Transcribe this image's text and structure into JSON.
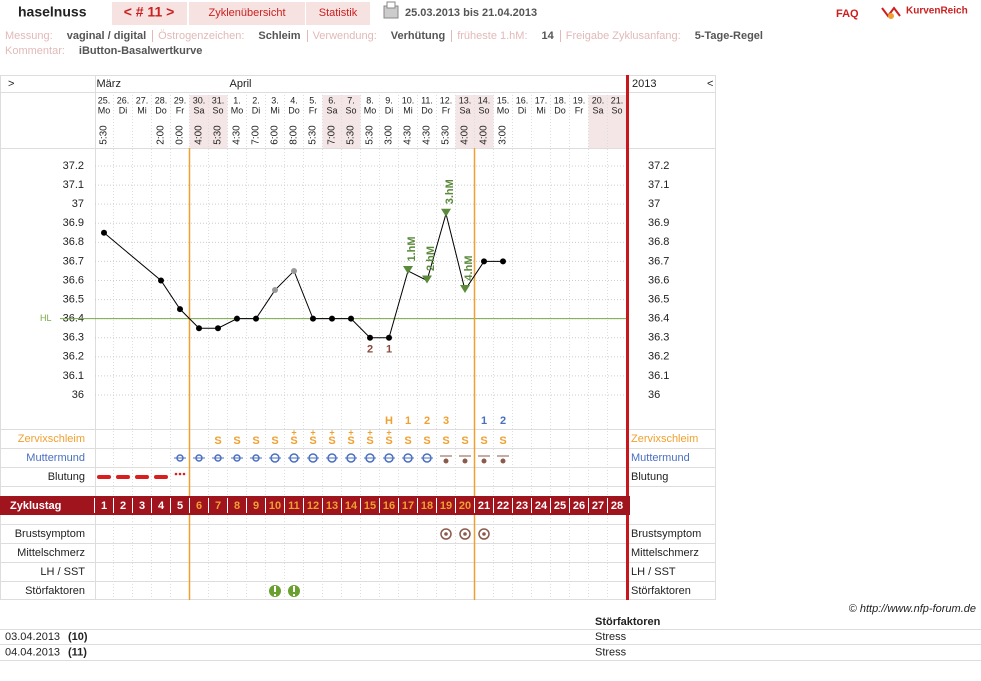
{
  "header": {
    "user": "haselnuss",
    "cycle_nav": "< # 11 >",
    "tabs": [
      "Zyklenübersicht",
      "Statistik"
    ],
    "period": "25.03.2013 bis 21.04.2013",
    "faq": "FAQ",
    "logo": "KurvenReich"
  },
  "info": {
    "line1": [
      {
        "label": "Messung:",
        "value": "vaginal / digital"
      },
      {
        "label": "Östrogenzeichen:",
        "value": "Schleim"
      },
      {
        "label": "Verwendung:",
        "value": "Verhütung"
      },
      {
        "label": "früheste 1.hM:",
        "value": "14"
      },
      {
        "label": "Freigabe Zyklusanfang:",
        "value": "5-Tage-Regel"
      }
    ],
    "line2": [
      {
        "label": "Kommentar:",
        "value": "iButton-Basalwertkurve"
      }
    ]
  },
  "chart_data": {
    "type": "line",
    "nav_prev": ">",
    "nav_next": "<",
    "year": "2013",
    "month_labels": [
      "März",
      null,
      null,
      null,
      null,
      null,
      null,
      "April",
      null,
      null,
      null,
      null,
      null,
      null,
      null,
      null,
      null,
      null,
      null,
      null,
      null,
      null,
      null,
      null,
      null,
      null,
      null,
      null
    ],
    "dates": [
      "25.",
      "26.",
      "27.",
      "28.",
      "29.",
      "30.",
      "31.",
      "1.",
      "2.",
      "3.",
      "4.",
      "5.",
      "6.",
      "7.",
      "8.",
      "9.",
      "10.",
      "11.",
      "12.",
      "13.",
      "14.",
      "15.",
      "16.",
      "17.",
      "18.",
      "19.",
      "20.",
      "21."
    ],
    "weekdays": [
      "Mo",
      "Di",
      "Mi",
      "Do",
      "Fr",
      "Sa",
      "So",
      "Mo",
      "Di",
      "Mi",
      "Do",
      "Fr",
      "Sa",
      "So",
      "Mo",
      "Di",
      "Mi",
      "Do",
      "Fr",
      "Sa",
      "So",
      "Mo",
      "Di",
      "Mi",
      "Do",
      "Fr",
      "Sa",
      "So"
    ],
    "times": [
      "5:30",
      null,
      null,
      "2:00",
      "0:00",
      "4:00",
      "5:30",
      "4:30",
      "7:00",
      "6:00",
      "8:00",
      "5:30",
      "7:00",
      "5:30",
      "5:30",
      "3:00",
      "4:30",
      "4:30",
      "5:30",
      "4:00",
      "4:00",
      "3:00",
      null,
      null,
      null,
      null,
      null,
      null
    ],
    "shaded_days": [
      6,
      7,
      13,
      14,
      20,
      21,
      27,
      28
    ],
    "x": [
      1,
      4,
      5,
      6,
      7,
      8,
      9,
      10,
      11,
      12,
      13,
      14,
      15,
      16,
      17,
      18,
      19,
      20,
      21,
      22
    ],
    "values": [
      36.85,
      36.6,
      36.45,
      36.35,
      36.35,
      36.4,
      36.4,
      36.55,
      36.65,
      36.4,
      36.4,
      36.4,
      36.3,
      36.3,
      36.65,
      36.6,
      36.95,
      36.55,
      36.7,
      36.7
    ],
    "excluded": [
      false,
      false,
      false,
      false,
      false,
      false,
      false,
      true,
      true,
      false,
      false,
      false,
      false,
      false,
      false,
      false,
      false,
      false,
      false,
      false
    ],
    "color": "#000000",
    "excluded_color": "#999999",
    "ylim": [
      36,
      37.2
    ],
    "yticks": [
      36,
      36.1,
      36.2,
      36.3,
      36.4,
      36.5,
      36.6,
      36.7,
      36.8,
      36.9,
      37,
      37.1,
      37.2
    ],
    "cover_line": {
      "label": "HL",
      "value": 36.4,
      "color": "#7aa84a"
    },
    "low_labels": [
      {
        "x": 15,
        "text": "2"
      },
      {
        "x": 16,
        "text": "1"
      }
    ],
    "high_labels": [
      {
        "x": 17,
        "text": "1.hM"
      },
      {
        "x": 18,
        "text": "2.hM"
      },
      {
        "x": 19,
        "text": "3.hM"
      },
      {
        "x": 20,
        "text": "4.hM"
      }
    ],
    "fertile_window": [
      6,
      20
    ],
    "mucus_peak_count": [
      null,
      null,
      null,
      null,
      null,
      null,
      null,
      null,
      null,
      null,
      null,
      null,
      null,
      null,
      null,
      "H",
      "1",
      "2",
      "3",
      null,
      null,
      null,
      null,
      null,
      null,
      null,
      null,
      null
    ],
    "cervix_peak_count": [
      null,
      null,
      null,
      null,
      null,
      null,
      null,
      null,
      null,
      null,
      null,
      null,
      null,
      null,
      null,
      null,
      null,
      null,
      null,
      null,
      "1",
      "2",
      null,
      null,
      null,
      null,
      null,
      null
    ],
    "mucus": [
      null,
      null,
      null,
      null,
      null,
      null,
      "S",
      "S",
      "S",
      "S",
      "S",
      "S",
      "S",
      "S",
      "S",
      "S",
      "S",
      "S",
      "S",
      "S",
      "S",
      "S",
      null,
      null,
      null,
      null,
      null,
      null
    ],
    "mucus_plus": [
      null,
      null,
      null,
      null,
      null,
      null,
      null,
      null,
      null,
      null,
      "+",
      "+",
      "+",
      "+",
      "+",
      "+",
      null,
      null,
      null,
      null,
      null,
      null,
      null,
      null,
      null,
      null,
      null,
      null
    ],
    "row_labels": {
      "mucus": "Zervixschleim",
      "cervix": "Muttermund",
      "bleeding": "Blutung",
      "cycle_day": "Zyklustag",
      "breast": "Brustsymptom",
      "midpain": "Mittelschmerz",
      "lh": "LH / SST",
      "disturb": "Störfaktoren"
    },
    "cycle_days": [
      1,
      2,
      3,
      4,
      5,
      6,
      7,
      8,
      9,
      10,
      11,
      12,
      13,
      14,
      15,
      16,
      17,
      18,
      19,
      20,
      21,
      22,
      23,
      24,
      25,
      26,
      27,
      28
    ]
  },
  "copyright": "© http://www.nfp-forum.de",
  "table": {
    "header": "Störfaktoren",
    "rows": [
      [
        "03.04.2013",
        "(10)",
        "Stress"
      ],
      [
        "04.04.2013",
        "(11)",
        "Stress"
      ]
    ]
  }
}
